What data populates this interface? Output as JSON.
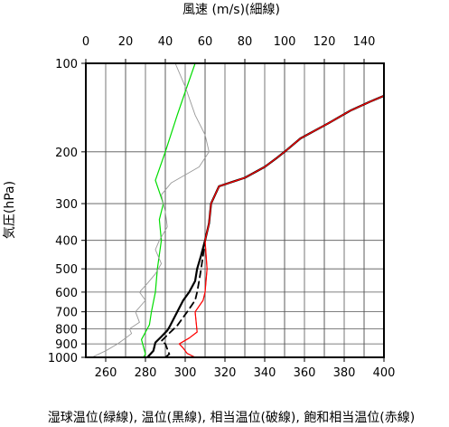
{
  "chart_data": {
    "type": "line",
    "top_axis_title": "風速 (m/s)(細線)",
    "y_axis_title": "気圧(hPa)",
    "bottom_axis_title": "湿球温位(緑線), 温位(黒線), 相当温位(破線), 飽和相当温位(赤線)",
    "bottom_axis": {
      "range": [
        250,
        400
      ],
      "ticks": [
        260,
        280,
        300,
        320,
        340,
        360,
        380,
        400
      ]
    },
    "top_axis": {
      "range": [
        0,
        150
      ],
      "ticks": [
        0,
        20,
        40,
        60,
        80,
        100,
        120,
        140
      ]
    },
    "y_axis": {
      "scale": "log",
      "range": [
        1000,
        100
      ],
      "ticks": [
        1000,
        900,
        800,
        700,
        600,
        500,
        400,
        300,
        200,
        100
      ]
    },
    "grid": true,
    "series": [
      {
        "name": "湿球温位",
        "axis": "bottom",
        "style": "solid",
        "color": "#00dd00",
        "points": [
          [
            279,
            1000
          ],
          [
            280,
            975
          ],
          [
            278,
            870
          ],
          [
            282,
            775
          ],
          [
            283,
            700
          ],
          [
            285,
            600
          ],
          [
            286,
            500
          ],
          [
            288,
            400
          ],
          [
            287,
            340
          ],
          [
            289,
            300
          ],
          [
            285,
            250
          ],
          [
            290,
            200
          ],
          [
            296,
            150
          ],
          [
            300,
            125
          ],
          [
            305,
            100
          ]
        ]
      },
      {
        "name": "温位",
        "axis": "bottom",
        "style": "solid",
        "color": "#000000",
        "points": [
          [
            281,
            1000
          ],
          [
            284,
            950
          ],
          [
            285,
            890
          ],
          [
            288,
            850
          ],
          [
            291,
            810
          ],
          [
            292,
            790
          ],
          [
            296,
            700
          ],
          [
            299,
            640
          ],
          [
            302,
            600
          ],
          [
            305,
            550
          ],
          [
            306,
            500
          ],
          [
            308,
            450
          ],
          [
            310,
            400
          ],
          [
            312,
            350
          ],
          [
            313,
            300
          ],
          [
            317,
            262
          ],
          [
            330,
            245
          ],
          [
            340,
            225
          ],
          [
            346,
            210
          ],
          [
            350,
            200
          ],
          [
            358,
            180
          ],
          [
            372,
            160
          ],
          [
            383,
            145
          ],
          [
            393,
            135
          ],
          [
            400,
            129
          ]
        ]
      },
      {
        "name": "相当温位",
        "axis": "bottom",
        "style": "dashed",
        "color": "#000000",
        "points": [
          [
            290,
            1000
          ],
          [
            292,
            975
          ],
          [
            290,
            900
          ],
          [
            288,
            880
          ],
          [
            291,
            840
          ],
          [
            296,
            780
          ],
          [
            301,
            700
          ],
          [
            305,
            640
          ],
          [
            306,
            600
          ],
          [
            307,
            550
          ],
          [
            308,
            500
          ],
          [
            309,
            450
          ],
          [
            310,
            400
          ],
          [
            312,
            350
          ],
          [
            313,
            300
          ],
          [
            317,
            262
          ],
          [
            330,
            245
          ],
          [
            340,
            225
          ],
          [
            346,
            210
          ],
          [
            350,
            200
          ],
          [
            358,
            180
          ],
          [
            372,
            160
          ],
          [
            383,
            145
          ],
          [
            393,
            135
          ],
          [
            400,
            129
          ]
        ]
      },
      {
        "name": "飽和相当温位",
        "axis": "bottom",
        "style": "solid",
        "color": "#ff0000",
        "points": [
          [
            305,
            1000
          ],
          [
            301,
            970
          ],
          [
            299,
            930
          ],
          [
            297,
            900
          ],
          [
            302,
            860
          ],
          [
            306,
            820
          ],
          [
            305,
            700
          ],
          [
            309,
            640
          ],
          [
            310,
            600
          ],
          [
            311,
            500
          ],
          [
            310,
            400
          ],
          [
            312,
            350
          ],
          [
            313,
            300
          ],
          [
            317,
            262
          ],
          [
            330,
            245
          ],
          [
            340,
            225
          ],
          [
            346,
            210
          ],
          [
            350,
            200
          ],
          [
            358,
            180
          ],
          [
            372,
            160
          ],
          [
            383,
            145
          ],
          [
            393,
            135
          ],
          [
            400,
            129
          ]
        ]
      },
      {
        "name": "風速",
        "axis": "top",
        "style": "thin",
        "color": "#999999",
        "points": [
          [
            3,
            1000
          ],
          [
            10,
            950
          ],
          [
            16,
            900
          ],
          [
            20,
            860
          ],
          [
            23,
            830
          ],
          [
            22,
            800
          ],
          [
            27,
            760
          ],
          [
            25,
            700
          ],
          [
            30,
            640
          ],
          [
            27,
            600
          ],
          [
            31,
            560
          ],
          [
            35,
            520
          ],
          [
            38,
            480
          ],
          [
            35,
            430
          ],
          [
            37,
            400
          ],
          [
            41,
            360
          ],
          [
            40,
            320
          ],
          [
            38,
            280
          ],
          [
            43,
            255
          ],
          [
            57,
            225
          ],
          [
            62,
            200
          ],
          [
            60,
            175
          ],
          [
            55,
            150
          ],
          [
            50,
            120
          ],
          [
            45,
            100
          ]
        ]
      }
    ]
  }
}
